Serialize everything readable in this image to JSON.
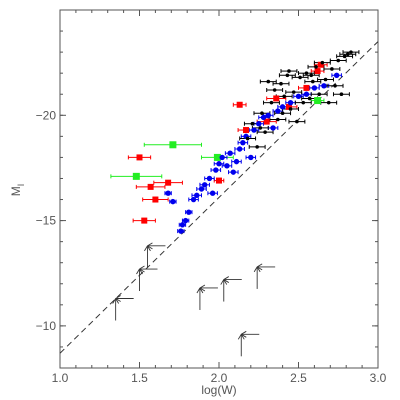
{
  "chart_data": {
    "type": "scatter",
    "title": "",
    "xlabel": "log(W)",
    "ylabel": "M",
    "ylabel_sub": "I",
    "xlim": [
      1.0,
      3.0
    ],
    "ylim": [
      -8,
      -25
    ],
    "y_inverted": true,
    "xticks": [
      1.0,
      1.5,
      2.0,
      2.5,
      3.0
    ],
    "xtick_labels": [
      "1.0",
      "1.5",
      "2.0",
      "2.5",
      "3.0"
    ],
    "yticks": [
      -10,
      -15,
      -20
    ],
    "ytick_labels": [
      "−10",
      "−15",
      "−20"
    ],
    "grid": false,
    "colors": {
      "red": "#ff0000",
      "green": "#22ee22",
      "blue": "#0000ee",
      "black": "#000000",
      "dashed_line": "#333333"
    },
    "fit_line": {
      "style": "dashed",
      "slope": -7.4,
      "intercept": -1.3
    },
    "series": [
      {
        "color": "red",
        "marker": "square",
        "points": [
          {
            "x": 1.53,
            "y": -15.0,
            "xerr": 0.07
          },
          {
            "x": 1.6,
            "y": -16.0,
            "xerr": 0.08
          },
          {
            "x": 1.57,
            "y": -16.6,
            "xerr": 0.09
          },
          {
            "x": 1.68,
            "y": -16.8,
            "xerr": 0.09
          },
          {
            "x": 1.5,
            "y": -18.0,
            "xerr": 0.07
          },
          {
            "x": 2.0,
            "y": -16.9,
            "xerr": 0.03
          },
          {
            "x": 2.13,
            "y": -20.5,
            "xerr": 0.04
          },
          {
            "x": 2.17,
            "y": -19.3,
            "xerr": 0.05
          },
          {
            "x": 2.3,
            "y": -19.7,
            "xerr": 0.06
          },
          {
            "x": 2.36,
            "y": -20.8,
            "xerr": 0.06
          },
          {
            "x": 2.44,
            "y": -20.4,
            "xerr": 0.05
          },
          {
            "x": 2.55,
            "y": -21.3,
            "xerr": 0.05
          },
          {
            "x": 2.62,
            "y": -22.1,
            "xerr": 0.04
          },
          {
            "x": 2.64,
            "y": -22.4,
            "xerr": 0.04
          }
        ]
      },
      {
        "color": "green",
        "marker": "square",
        "points": [
          {
            "x": 1.48,
            "y": -17.1,
            "xerr": 0.16
          },
          {
            "x": 1.71,
            "y": -18.6,
            "xerr": 0.18
          },
          {
            "x": 1.99,
            "y": -18.0,
            "xerr": 0.1
          },
          {
            "x": 2.62,
            "y": -20.7,
            "xerr": 0.04
          }
        ]
      },
      {
        "color": "blue",
        "marker": "circle",
        "points": [
          {
            "x": 1.76,
            "y": -14.5,
            "xerr": 0.02
          },
          {
            "x": 1.77,
            "y": -14.8,
            "xerr": 0.02
          },
          {
            "x": 1.79,
            "y": -15.0,
            "xerr": 0.02
          },
          {
            "x": 1.81,
            "y": -15.4,
            "xerr": 0.02
          },
          {
            "x": 1.84,
            "y": -16.0,
            "xerr": 0.03
          },
          {
            "x": 1.86,
            "y": -16.2,
            "xerr": 0.03
          },
          {
            "x": 1.89,
            "y": -16.5,
            "xerr": 0.03
          },
          {
            "x": 1.91,
            "y": -16.7,
            "xerr": 0.03
          },
          {
            "x": 1.94,
            "y": -17.0,
            "xerr": 0.03
          },
          {
            "x": 1.96,
            "y": -16.3,
            "xerr": 0.03
          },
          {
            "x": 1.98,
            "y": -17.4,
            "xerr": 0.03
          },
          {
            "x": 2.0,
            "y": -17.7,
            "xerr": 0.03
          },
          {
            "x": 2.02,
            "y": -18.0,
            "xerr": 0.03
          },
          {
            "x": 2.05,
            "y": -17.6,
            "xerr": 0.03
          },
          {
            "x": 2.07,
            "y": -18.2,
            "xerr": 0.03
          },
          {
            "x": 2.09,
            "y": -17.3,
            "xerr": 0.03
          },
          {
            "x": 2.11,
            "y": -17.8,
            "xerr": 0.03
          },
          {
            "x": 2.13,
            "y": -18.4,
            "xerr": 0.03
          },
          {
            "x": 2.15,
            "y": -18.7,
            "xerr": 0.03
          },
          {
            "x": 2.17,
            "y": -19.0,
            "xerr": 0.03
          },
          {
            "x": 2.2,
            "y": -18.0,
            "xerr": 0.03
          },
          {
            "x": 2.22,
            "y": -19.3,
            "xerr": 0.03
          },
          {
            "x": 2.25,
            "y": -19.6,
            "xerr": 0.03
          },
          {
            "x": 2.28,
            "y": -19.9,
            "xerr": 0.03
          },
          {
            "x": 2.31,
            "y": -20.0,
            "xerr": 0.03
          },
          {
            "x": 2.34,
            "y": -19.4,
            "xerr": 0.03
          },
          {
            "x": 2.37,
            "y": -20.2,
            "xerr": 0.03
          },
          {
            "x": 2.4,
            "y": -20.4,
            "xerr": 0.03
          },
          {
            "x": 2.45,
            "y": -20.6,
            "xerr": 0.03
          },
          {
            "x": 2.5,
            "y": -20.9,
            "xerr": 0.03
          },
          {
            "x": 2.55,
            "y": -21.0,
            "xerr": 0.03
          },
          {
            "x": 2.6,
            "y": -21.3,
            "xerr": 0.03
          },
          {
            "x": 2.66,
            "y": -21.4,
            "xerr": 0.03
          },
          {
            "x": 2.74,
            "y": -21.9,
            "xerr": 0.03
          },
          {
            "x": 1.68,
            "y": -16.3,
            "xerr": 0.02
          },
          {
            "x": 1.71,
            "y": -15.9,
            "xerr": 0.02
          }
        ]
      },
      {
        "color": "black",
        "marker": "dot",
        "points": [
          {
            "x": 2.18,
            "y": -18.9,
            "xerr": 0.05
          },
          {
            "x": 2.21,
            "y": -19.6,
            "xerr": 0.05
          },
          {
            "x": 2.24,
            "y": -18.5,
            "xerr": 0.05
          },
          {
            "x": 2.27,
            "y": -20.1,
            "xerr": 0.05
          },
          {
            "x": 2.29,
            "y": -19.2,
            "xerr": 0.05
          },
          {
            "x": 2.31,
            "y": -21.6,
            "xerr": 0.05
          },
          {
            "x": 2.33,
            "y": -20.6,
            "xerr": 0.05
          },
          {
            "x": 2.35,
            "y": -21.2,
            "xerr": 0.05
          },
          {
            "x": 2.37,
            "y": -19.8,
            "xerr": 0.05
          },
          {
            "x": 2.39,
            "y": -21.5,
            "xerr": 0.05
          },
          {
            "x": 2.41,
            "y": -20.9,
            "xerr": 0.05
          },
          {
            "x": 2.43,
            "y": -21.9,
            "xerr": 0.05
          },
          {
            "x": 2.45,
            "y": -20.3,
            "xerr": 0.05
          },
          {
            "x": 2.47,
            "y": -21.1,
            "xerr": 0.05
          },
          {
            "x": 2.49,
            "y": -19.7,
            "xerr": 0.05
          },
          {
            "x": 2.51,
            "y": -21.8,
            "xerr": 0.05
          },
          {
            "x": 2.53,
            "y": -20.6,
            "xerr": 0.05
          },
          {
            "x": 2.55,
            "y": -22.0,
            "xerr": 0.05
          },
          {
            "x": 2.57,
            "y": -20.8,
            "xerr": 0.05
          },
          {
            "x": 2.59,
            "y": -21.6,
            "xerr": 0.05
          },
          {
            "x": 2.61,
            "y": -22.3,
            "xerr": 0.05
          },
          {
            "x": 2.63,
            "y": -21.0,
            "xerr": 0.05
          },
          {
            "x": 2.65,
            "y": -22.5,
            "xerr": 0.05
          },
          {
            "x": 2.67,
            "y": -21.7,
            "xerr": 0.05
          },
          {
            "x": 2.69,
            "y": -20.6,
            "xerr": 0.05
          },
          {
            "x": 2.71,
            "y": -22.2,
            "xerr": 0.05
          },
          {
            "x": 2.73,
            "y": -21.4,
            "xerr": 0.05
          },
          {
            "x": 2.75,
            "y": -22.6,
            "xerr": 0.05
          },
          {
            "x": 2.77,
            "y": -21.0,
            "xerr": 0.05
          },
          {
            "x": 2.79,
            "y": -22.8,
            "xerr": 0.05
          },
          {
            "x": 2.81,
            "y": -22.9,
            "xerr": 0.05
          },
          {
            "x": 2.83,
            "y": -23.0,
            "xerr": 0.05
          },
          {
            "x": 2.4,
            "y": -20.1,
            "xerr": 0.05
          },
          {
            "x": 2.26,
            "y": -19.4,
            "xerr": 0.05
          },
          {
            "x": 2.44,
            "y": -22.1,
            "xerr": 0.05
          },
          {
            "x": 2.58,
            "y": -21.9,
            "xerr": 0.05
          }
        ]
      }
    ],
    "upper_limits": [
      {
        "x": 1.35,
        "y": -11.3
      },
      {
        "x": 1.5,
        "y": -12.7
      },
      {
        "x": 1.55,
        "y": -13.8
      },
      {
        "x": 1.88,
        "y": -11.8
      },
      {
        "x": 2.03,
        "y": -12.2
      },
      {
        "x": 2.14,
        "y": -9.6
      },
      {
        "x": 2.24,
        "y": -12.8
      }
    ]
  }
}
